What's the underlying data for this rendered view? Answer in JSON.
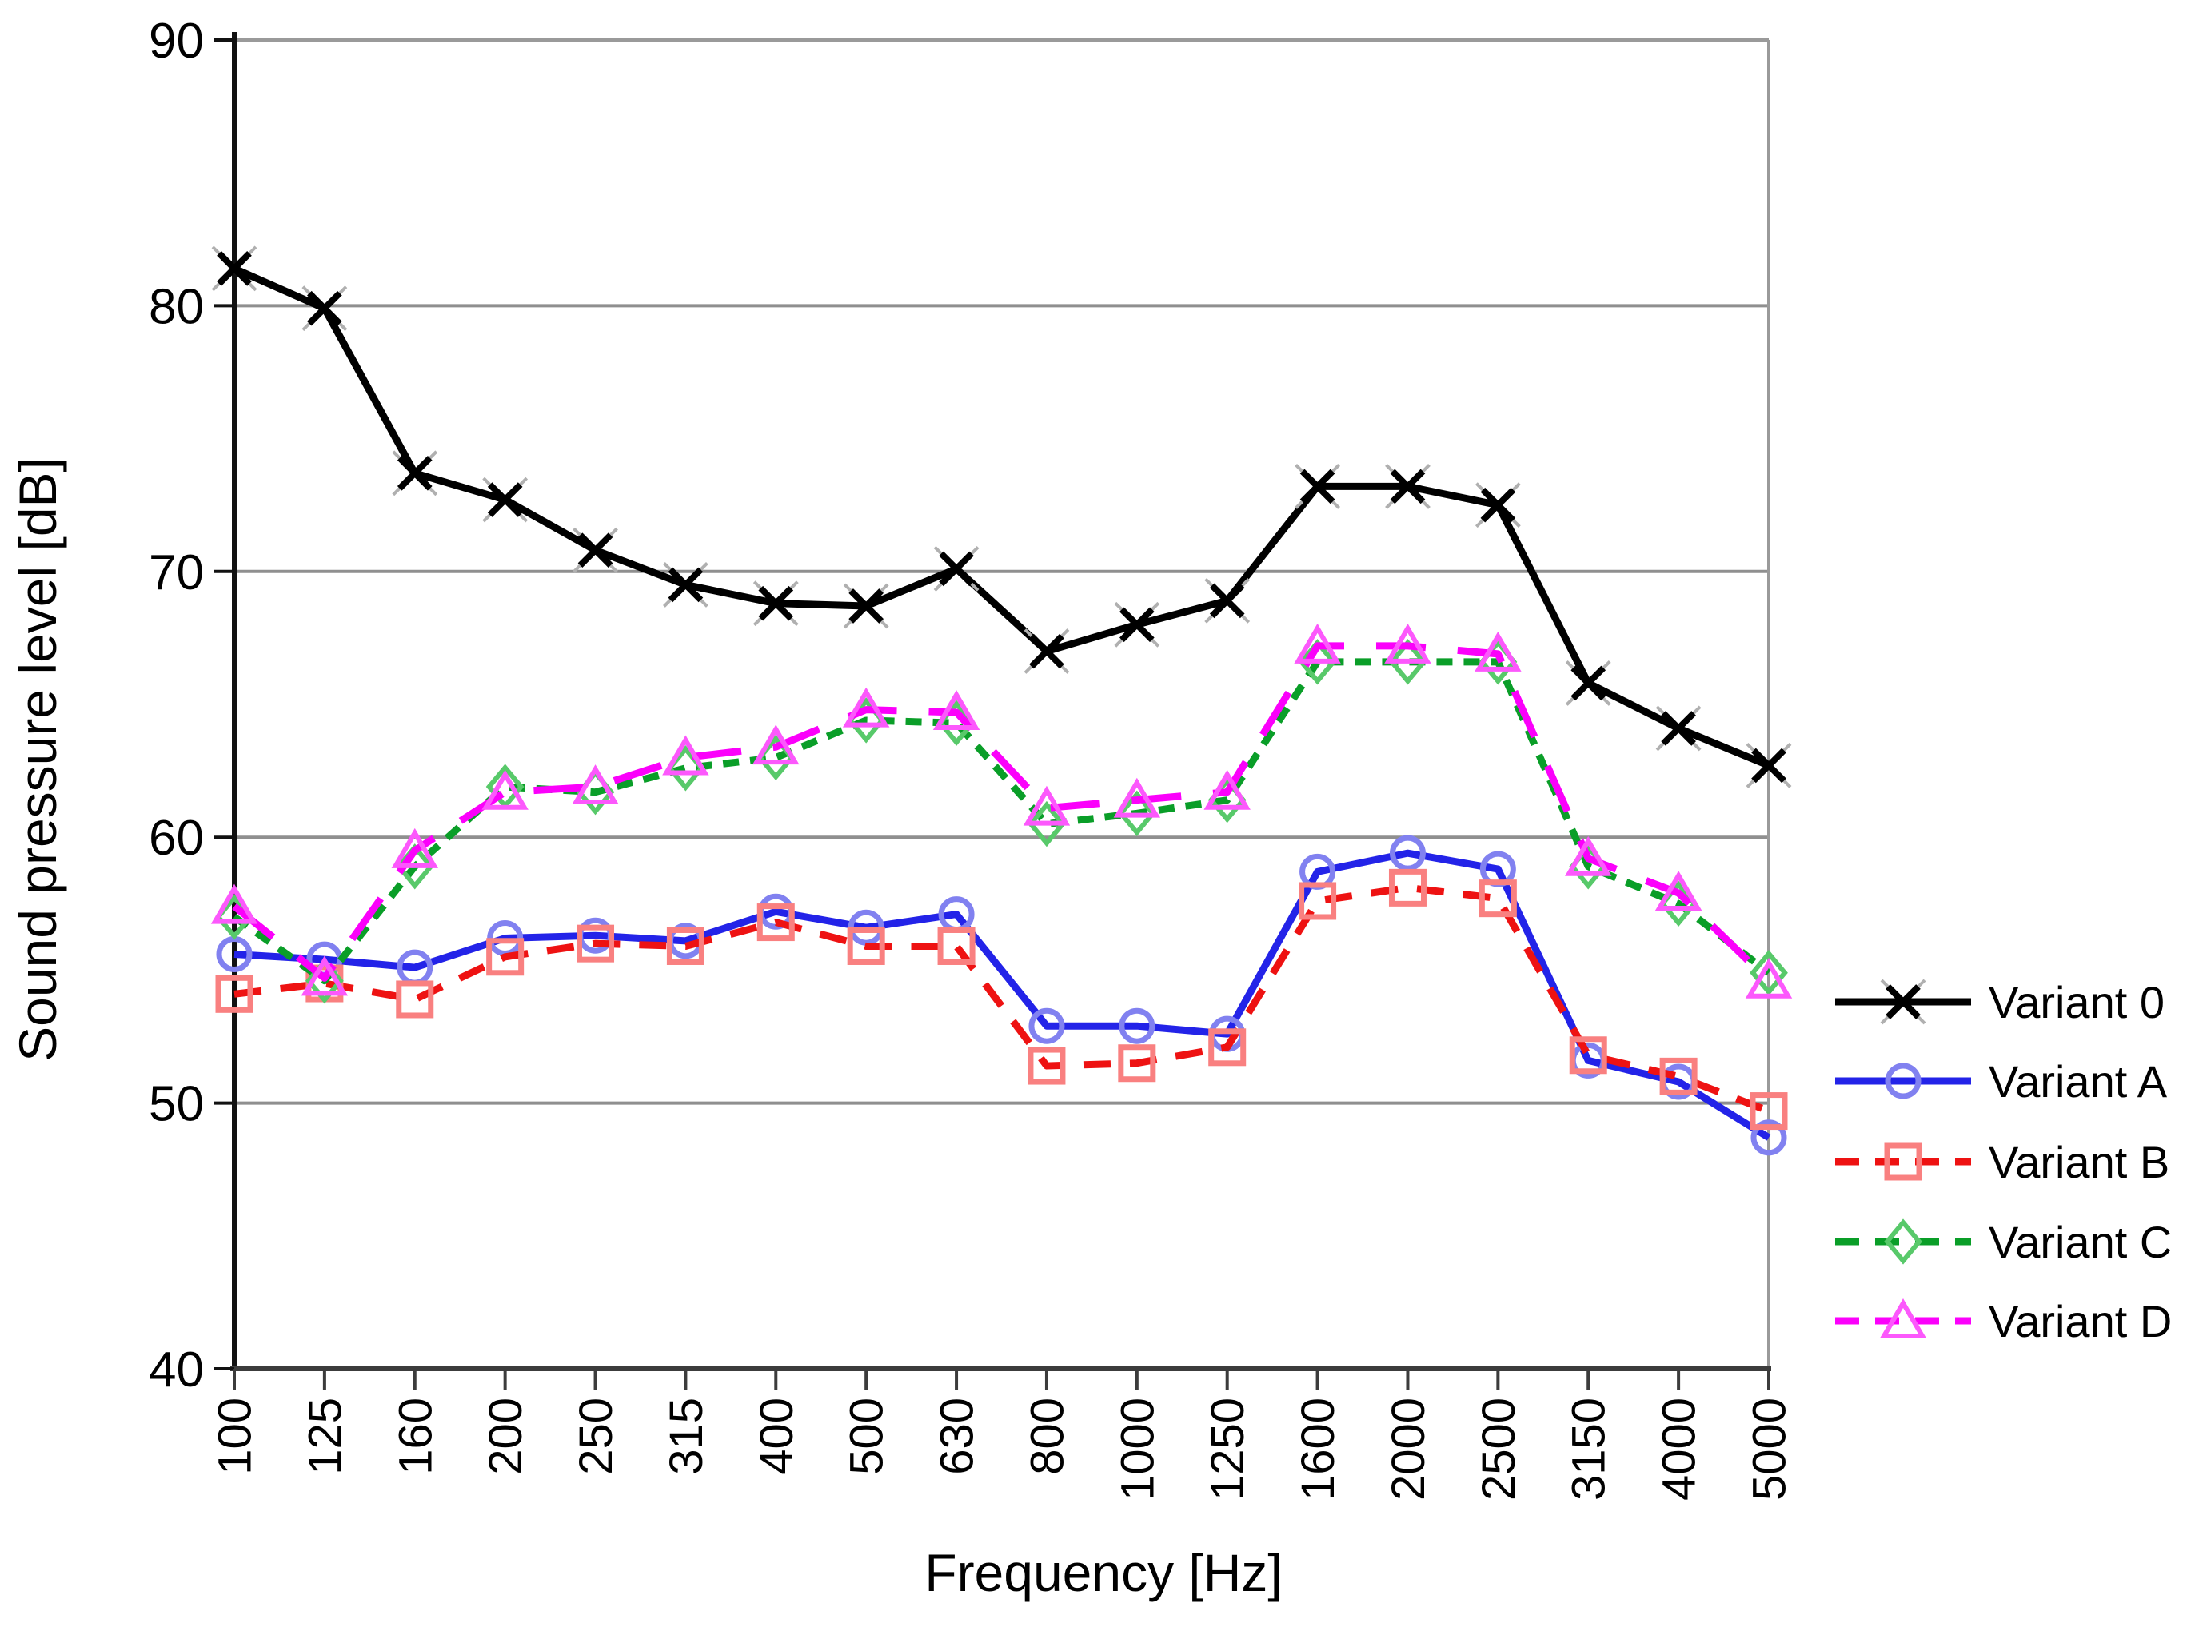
{
  "chart_data": {
    "type": "line",
    "title": "",
    "xlabel": "Frequency [Hz]",
    "ylabel": "Sound  pressure level [dB]",
    "ylim": [
      40,
      90
    ],
    "yticks": [
      90,
      80,
      70,
      60,
      50,
      40
    ],
    "ytick_labels": [
      "90",
      "80",
      "70",
      "60",
      "50",
      "40"
    ],
    "grid": "horizontal-gridlines-on",
    "legend_position": "right",
    "x_categories": [
      "100",
      "125",
      "160",
      "200",
      "250",
      "315",
      "400",
      "500",
      "630",
      "800",
      "1000",
      "1250",
      "1600",
      "2000",
      "2500",
      "3150",
      "4000",
      "5000"
    ],
    "series": [
      {
        "name": "Variant 0",
        "color": "#000000",
        "marker_color": "#000000",
        "marker": "x-marker-icon",
        "line_style": "solid",
        "values": [
          81.4,
          79.9,
          73.7,
          72.7,
          70.8,
          69.5,
          68.8,
          68.7,
          70.1,
          67.0,
          68.0,
          68.9,
          73.2,
          73.2,
          72.5,
          65.8,
          64.1,
          62.7
        ]
      },
      {
        "name": "Variant A",
        "color": "#2323e8",
        "marker_color": "#8181f0",
        "marker": "circle-marker-icon",
        "line_style": "solid",
        "values": [
          55.6,
          55.4,
          55.1,
          56.2,
          56.3,
          56.1,
          57.2,
          56.6,
          57.1,
          52.9,
          52.9,
          52.6,
          58.7,
          59.4,
          58.8,
          51.6,
          50.8,
          48.7
        ]
      },
      {
        "name": "Variant B",
        "color": "#ee1212",
        "marker_color": "#f98080",
        "marker": "square-marker-icon",
        "line_style": "dashed",
        "values": [
          54.1,
          54.5,
          53.9,
          55.5,
          56.0,
          55.9,
          56.8,
          55.9,
          55.9,
          51.4,
          51.5,
          52.1,
          57.6,
          58.1,
          57.7,
          51.8,
          51.0,
          49.7
        ]
      },
      {
        "name": "Variant C",
        "color": "#0a9e28",
        "marker_color": "#58c96a",
        "marker": "diamond-marker-icon",
        "line_style": "short-dash",
        "values": [
          57.0,
          54.6,
          58.9,
          61.9,
          61.7,
          62.6,
          63.0,
          64.4,
          64.3,
          60.5,
          60.9,
          61.4,
          66.6,
          66.6,
          66.6,
          58.9,
          57.5,
          54.9
        ]
      },
      {
        "name": "Variant D",
        "color": "#fb00fb",
        "marker_color": "#fc58fc",
        "marker": "triangle-marker-icon",
        "line_style": "long-dash",
        "values": [
          57.4,
          54.7,
          59.5,
          61.7,
          61.9,
          63.0,
          63.4,
          64.8,
          64.7,
          61.1,
          61.4,
          61.7,
          67.2,
          67.2,
          66.9,
          59.2,
          57.9,
          54.6
        ]
      }
    ]
  },
  "colors": {
    "gridline": "#8f8f8f",
    "plot_border": "#9a9a9a",
    "x_axis": "#3c3c3c",
    "y_axis": "#111111",
    "background": "#ffffff"
  }
}
